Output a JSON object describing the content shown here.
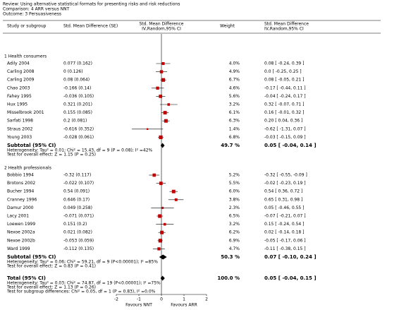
{
  "chart_data": {
    "type": "forest",
    "review": "Review:   Using alternative statistical formats for presenting risks and risk reductions",
    "comparison": "Comparison:   4 ARR versus NNT",
    "outcome": "Outcome:   3 Persuasiveness",
    "columns": {
      "study": "Study or subgroup",
      "smd_se": "Std. Mean Difference (SE)",
      "plot": "Std. Mean Difference",
      "plot_sub": "IV,Random,95% CI",
      "weight": "Weight",
      "ci": "Std. Mean Difference",
      "ci_sub": "IV,Random,95% CI"
    },
    "xlim": [
      -2,
      2
    ],
    "xticks": [
      -2,
      -1,
      0,
      1,
      2
    ],
    "favours_left": "Favours NNT",
    "favours_right": "Favours ARR",
    "groups": [
      {
        "name": "1 Health consumers",
        "studies": [
          {
            "name": "Adily 2004",
            "smd_se": "0.077 (0.162)",
            "weight": 4,
            "weight_label": "4.0%",
            "est": 0.08,
            "lo": -0.24,
            "hi": 0.39,
            "ci_label": "0.08 [ -0.24, 0.39 ]"
          },
          {
            "name": "Carling 2008",
            "smd_se": "0 (0.126)",
            "weight": 4.9,
            "weight_label": "4.9%",
            "est": 0,
            "lo": -0.25,
            "hi": 0.25,
            "ci_label": "0.0 [ -0.25, 0.25 ]"
          },
          {
            "name": "Carling 2009",
            "smd_se": "0.08 (0.064)",
            "weight": 6.7,
            "weight_label": "6.7%",
            "est": 0.08,
            "lo": -0.05,
            "hi": 0.21,
            "ci_label": "0.08 [ -0.05, 0.21 ]"
          },
          {
            "name": "Chao 2003",
            "smd_se": "-0.166 (0.14)",
            "weight": 4.6,
            "weight_label": "4.6%",
            "est": -0.17,
            "lo": -0.44,
            "hi": 0.11,
            "ci_label": "-0.17 [ -0.44, 0.11 ]"
          },
          {
            "name": "Fahey 1995",
            "smd_se": "-0.036 (0.105)",
            "weight": 5.6,
            "weight_label": "5.6%",
            "est": -0.04,
            "lo": -0.24,
            "hi": 0.17,
            "ci_label": "-0.04 [ -0.24, 0.17 ]"
          },
          {
            "name": "Hux 1995",
            "smd_se": "0.321 (0.201)",
            "weight": 3.2,
            "weight_label": "3.2%",
            "est": 0.32,
            "lo": -0.07,
            "hi": 0.71,
            "ci_label": "0.32 [ -0.07, 0.71 ]"
          },
          {
            "name": "Misselbrook 2001",
            "smd_se": "0.155 (0.085)",
            "weight": 6.1,
            "weight_label": "6.1%",
            "est": 0.16,
            "lo": -0.01,
            "hi": 0.32,
            "ci_label": "0.16 [ -0.01, 0.32 ]"
          },
          {
            "name": "Sarfati 1998",
            "smd_se": "0.2 (0.081)",
            "weight": 6.3,
            "weight_label": "6.3%",
            "est": 0.2,
            "lo": 0.04,
            "hi": 0.36,
            "ci_label": "0.20 [ 0.04, 0.36 ]"
          },
          {
            "name": "Straus 2002",
            "smd_se": "-0.616 (0.352)",
            "weight": 1.4,
            "weight_label": "1.4%",
            "est": -0.62,
            "lo": -1.31,
            "hi": 0.07,
            "ci_label": "-0.62 [ -1.31, 0.07 ]"
          },
          {
            "name": "Young 2003",
            "smd_se": "-0.028 (0.061)",
            "weight": 6.8,
            "weight_label": "6.8%",
            "est": -0.03,
            "lo": -0.15,
            "hi": 0.09,
            "ci_label": "-0.03 [ -0.15, 0.09 ]"
          }
        ],
        "subtotal": {
          "name": "Subtotal (95% CI)",
          "weight": 49.7,
          "weight_label": "49.7 %",
          "est": 0.05,
          "lo": -0.04,
          "hi": 0.14,
          "ci_label": "0.05 [ -0.04, 0.14 ]"
        },
        "heterogeneity": "Heterogeneity: Tau² = 0.01; Chi² = 15.43, df = 9 (P = 0.08); I² =42%",
        "overall": "Test for overall effect: Z = 1.15 (P = 0.25)"
      },
      {
        "name": "2 Health professionals",
        "studies": [
          {
            "name": "Bobbio 1994",
            "smd_se": "-0.32 (0.117)",
            "weight": 5.2,
            "weight_label": "5.2%",
            "est": -0.32,
            "lo": -0.55,
            "hi": -0.09,
            "ci_label": "-0.32 [ -0.55, -0.09 ]"
          },
          {
            "name": "Brotons 2002",
            "smd_se": "-0.022 (0.107)",
            "weight": 5.5,
            "weight_label": "5.5%",
            "est": -0.02,
            "lo": -0.23,
            "hi": 0.19,
            "ci_label": "-0.02 [ -0.23, 0.19 ]"
          },
          {
            "name": "Bucher 1994",
            "smd_se": "0.54 (0.091)",
            "weight": 6,
            "weight_label": "6.0%",
            "est": 0.54,
            "lo": 0.36,
            "hi": 0.72,
            "ci_label": "0.54 [ 0.36, 0.72 ]"
          },
          {
            "name": "Cranney 1996",
            "smd_se": "0.646 (0.17)",
            "weight": 3.8,
            "weight_label": "3.8%",
            "est": 0.65,
            "lo": 0.31,
            "hi": 0.98,
            "ci_label": "0.65 [ 0.31, 0.98 ]"
          },
          {
            "name": "Damur 2000",
            "smd_se": "0.049 (0.258)",
            "weight": 2.3,
            "weight_label": "2.3%",
            "est": 0.05,
            "lo": -0.46,
            "hi": 0.55,
            "ci_label": "0.05 [ -0.46, 0.55 ]"
          },
          {
            "name": "Lacy 2001",
            "smd_se": "-0.071 (0.071)",
            "weight": 6.5,
            "weight_label": "6.5%",
            "est": -0.07,
            "lo": -0.21,
            "hi": 0.07,
            "ci_label": "-0.07 [ -0.21, 0.07 ]"
          },
          {
            "name": "Loewen 1999",
            "smd_se": "0.151 (0.2)",
            "weight": 3.2,
            "weight_label": "3.2%",
            "est": 0.15,
            "lo": -0.24,
            "hi": 0.54,
            "ci_label": "0.15 [ -0.24, 0.54 ]"
          },
          {
            "name": "Nexoe 2002a",
            "smd_se": "0.021 (0.082)",
            "weight": 6.2,
            "weight_label": "6.2%",
            "est": 0.02,
            "lo": -0.14,
            "hi": 0.18,
            "ci_label": "0.02 [ -0.14, 0.18 ]"
          },
          {
            "name": "Nexoe 2002b",
            "smd_se": "-0.053 (0.059)",
            "weight": 6.9,
            "weight_label": "6.9%",
            "est": -0.05,
            "lo": -0.17,
            "hi": 0.06,
            "ci_label": "-0.05 [ -0.17, 0.06 ]"
          },
          {
            "name": "Ward 1999",
            "smd_se": "-0.112 (0.135)",
            "weight": 4.7,
            "weight_label": "4.7%",
            "est": -0.11,
            "lo": -0.38,
            "hi": 0.15,
            "ci_label": "-0.11 [ -0.38, 0.15 ]"
          }
        ],
        "subtotal": {
          "name": "Subtotal (95% CI)",
          "weight": 50.3,
          "weight_label": "50.3 %",
          "est": 0.07,
          "lo": -0.1,
          "hi": 0.24,
          "ci_label": "0.07 [ -0.10, 0.24 ]"
        },
        "heterogeneity": "Heterogeneity: Tau² = 0.06; Chi² = 59.21, df = 9 (P<0.00001); I² =85%",
        "overall": "Test for overall effect: Z = 0.83 (P = 0.41)"
      }
    ],
    "total": {
      "name": "Total (95% CI)",
      "weight": 100,
      "weight_label": "100.0 %",
      "est": 0.05,
      "lo": -0.04,
      "hi": 0.15,
      "ci_label": "0.05 [ -0.04, 0.15 ]",
      "heterogeneity": "Heterogeneity: Tau² = 0.03; Chi² = 74.87, df = 19 (P<0.00001); I² =75%",
      "overall": "Test for overall effect: Z = 1.13 (P = 0.26)",
      "subgroup": "Test for subgroup differences: Chi² = 0.05, df = 1 (P = 0.83), I² =0.0%"
    },
    "square_color": "#c00000"
  }
}
